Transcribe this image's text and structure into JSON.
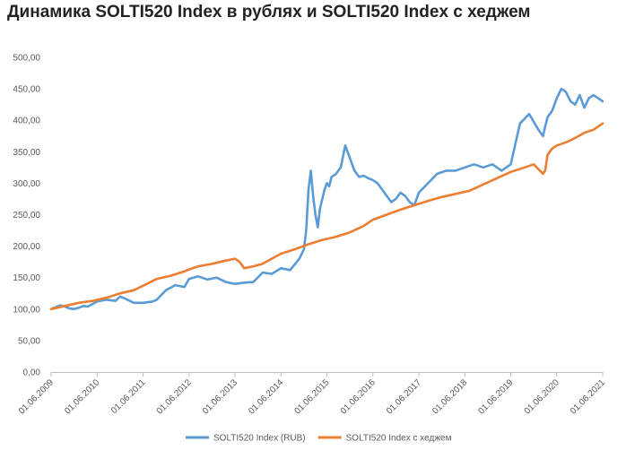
{
  "chart_data": {
    "type": "line",
    "title": "Динамика SOLTI520 Index в рублях и SOLTI520 Index с хеджем",
    "xlabel": "",
    "ylabel": "",
    "ylim": [
      0,
      500
    ],
    "y_ticks": [
      "0,00",
      "50,00",
      "100,00",
      "150,00",
      "200,00",
      "250,00",
      "300,00",
      "350,00",
      "400,00",
      "450,00",
      "500,00"
    ],
    "x_ticks": [
      "01.06.2009",
      "01.06.2010",
      "01.06.2011",
      "01.06.2012",
      "01.06.2013",
      "01.06.2014",
      "01.06.2015",
      "01.06.2016",
      "01.06.2017",
      "01.06.2018",
      "01.06.2019",
      "01.06.2020",
      "01.06.2021"
    ],
    "grid": "none",
    "legend_position": "bottom-center",
    "x_unit": "years since 01.06.2009",
    "series": [
      {
        "name": "SOLTI520 Index (RUB)",
        "color": "#5B9BD5",
        "x": [
          0,
          0.1,
          0.2,
          0.3,
          0.4,
          0.5,
          0.6,
          0.7,
          0.8,
          0.9,
          1.0,
          1.2,
          1.4,
          1.5,
          1.6,
          1.8,
          2.0,
          2.2,
          2.3,
          2.5,
          2.7,
          2.9,
          3.0,
          3.2,
          3.4,
          3.6,
          3.8,
          4.0,
          4.2,
          4.4,
          4.6,
          4.8,
          5.0,
          5.2,
          5.4,
          5.5,
          5.55,
          5.6,
          5.65,
          5.7,
          5.75,
          5.8,
          5.85,
          5.9,
          5.95,
          6.0,
          6.05,
          6.1,
          6.2,
          6.3,
          6.4,
          6.5,
          6.6,
          6.7,
          6.8,
          6.9,
          7.0,
          7.1,
          7.2,
          7.3,
          7.4,
          7.5,
          7.6,
          7.7,
          7.8,
          7.9,
          8.0,
          8.2,
          8.4,
          8.6,
          8.8,
          9.0,
          9.2,
          9.4,
          9.6,
          9.8,
          10.0,
          10.2,
          10.4,
          10.6,
          10.7,
          10.75,
          10.8,
          10.9,
          11.0,
          11.1,
          11.2,
          11.3,
          11.4,
          11.5,
          11.6,
          11.7,
          11.8,
          11.9,
          12.0
        ],
        "y": [
          100,
          103,
          106,
          104,
          101,
          100,
          102,
          105,
          104,
          108,
          112,
          115,
          113,
          120,
          117,
          110,
          110,
          112,
          115,
          130,
          138,
          135,
          148,
          152,
          147,
          150,
          143,
          140,
          142,
          143,
          158,
          156,
          165,
          162,
          180,
          195,
          225,
          290,
          320,
          280,
          250,
          230,
          260,
          275,
          290,
          300,
          295,
          310,
          315,
          325,
          360,
          340,
          320,
          310,
          312,
          308,
          305,
          300,
          290,
          280,
          270,
          275,
          285,
          280,
          270,
          265,
          285,
          300,
          315,
          320,
          320,
          325,
          330,
          325,
          330,
          320,
          330,
          395,
          410,
          385,
          375,
          390,
          405,
          415,
          435,
          450,
          445,
          430,
          425,
          440,
          420,
          435,
          440,
          435,
          430
        ]
      },
      {
        "name": "SOLTI520 Index с хеджем",
        "color": "#ED7D31",
        "x": [
          0,
          0.3,
          0.6,
          0.9,
          1.2,
          1.5,
          1.8,
          2.0,
          2.3,
          2.6,
          2.9,
          3.0,
          3.2,
          3.5,
          3.8,
          4.0,
          4.1,
          4.2,
          4.4,
          4.6,
          4.8,
          5.0,
          5.3,
          5.6,
          5.9,
          6.2,
          6.5,
          6.8,
          7.0,
          7.3,
          7.6,
          7.9,
          8.2,
          8.5,
          8.8,
          9.1,
          9.4,
          9.7,
          10.0,
          10.3,
          10.5,
          10.7,
          10.75,
          10.8,
          10.9,
          11.0,
          11.2,
          11.4,
          11.6,
          11.8,
          12.0
        ],
        "y": [
          100,
          105,
          110,
          113,
          118,
          125,
          130,
          137,
          148,
          153,
          160,
          163,
          168,
          172,
          177,
          180,
          175,
          165,
          168,
          172,
          180,
          188,
          195,
          203,
          210,
          215,
          222,
          232,
          242,
          250,
          258,
          265,
          272,
          278,
          283,
          288,
          298,
          308,
          318,
          325,
          330,
          315,
          320,
          345,
          355,
          360,
          365,
          372,
          380,
          385,
          395
        ]
      }
    ]
  }
}
